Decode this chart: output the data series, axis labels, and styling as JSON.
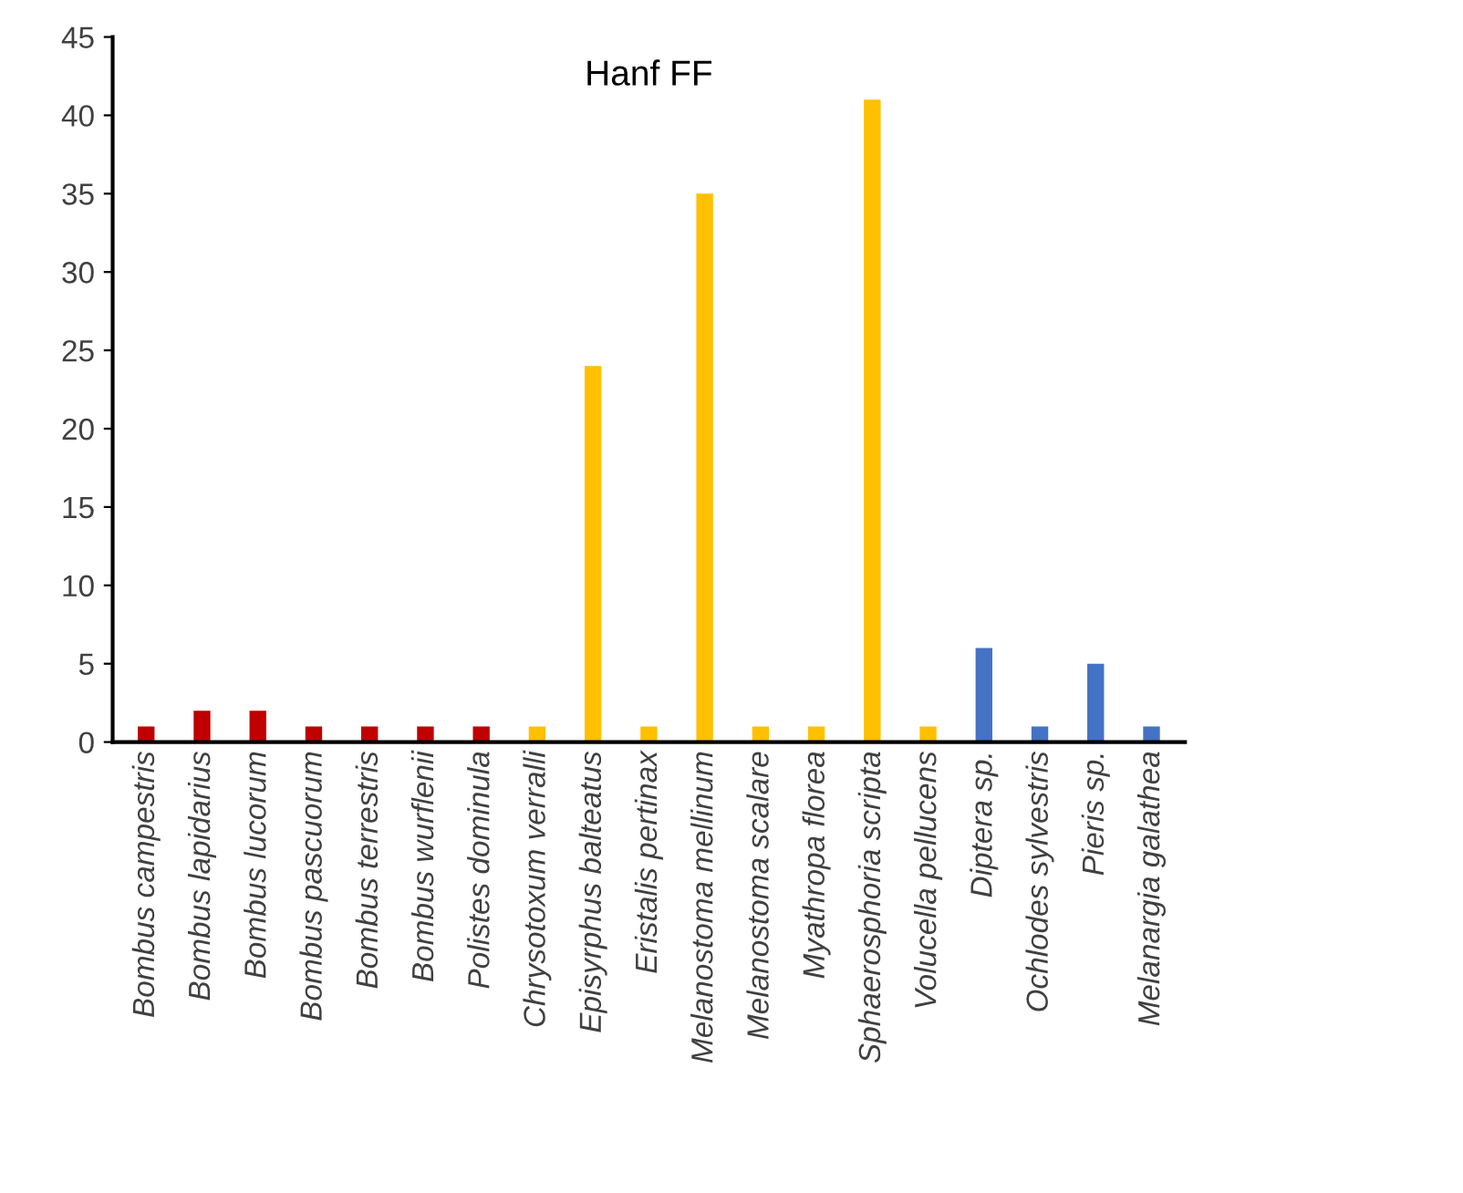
{
  "chart_data": {
    "type": "bar",
    "title": "Hanf FF",
    "categories": [
      "Bombus campestris",
      "Bombus lapidarius",
      "Bombus lucorum",
      "Bombus pascuorum",
      "Bombus terrestris",
      "Bombus wurflenii",
      "Polistes dominula",
      "Chrysotoxum verralli",
      "Episyrphus balteatus",
      "Eristalis pertinax",
      "Melanostoma mellinum",
      "Melanostoma scalare",
      "Myathropa florea",
      "Sphaerosphoria scripta",
      "Volucella pellucens",
      "Diptera sp.",
      "Ochlodes sylvestris",
      "Pieris sp.",
      "Melanargia galathea"
    ],
    "values": [
      1,
      2,
      2,
      1,
      1,
      1,
      1,
      1,
      24,
      1,
      35,
      1,
      1,
      41,
      1,
      6,
      1,
      5,
      1
    ],
    "colors": [
      "#c00000",
      "#c00000",
      "#c00000",
      "#c00000",
      "#c00000",
      "#c00000",
      "#c00000",
      "#ffc000",
      "#ffc000",
      "#ffc000",
      "#ffc000",
      "#ffc000",
      "#ffc000",
      "#ffc000",
      "#ffc000",
      "#4472c4",
      "#4472c4",
      "#4472c4",
      "#4472c4"
    ],
    "ylim": [
      0,
      45
    ],
    "yticks": [
      0,
      5,
      10,
      15,
      20,
      25,
      30,
      35,
      40,
      45
    ],
    "grid": false
  }
}
